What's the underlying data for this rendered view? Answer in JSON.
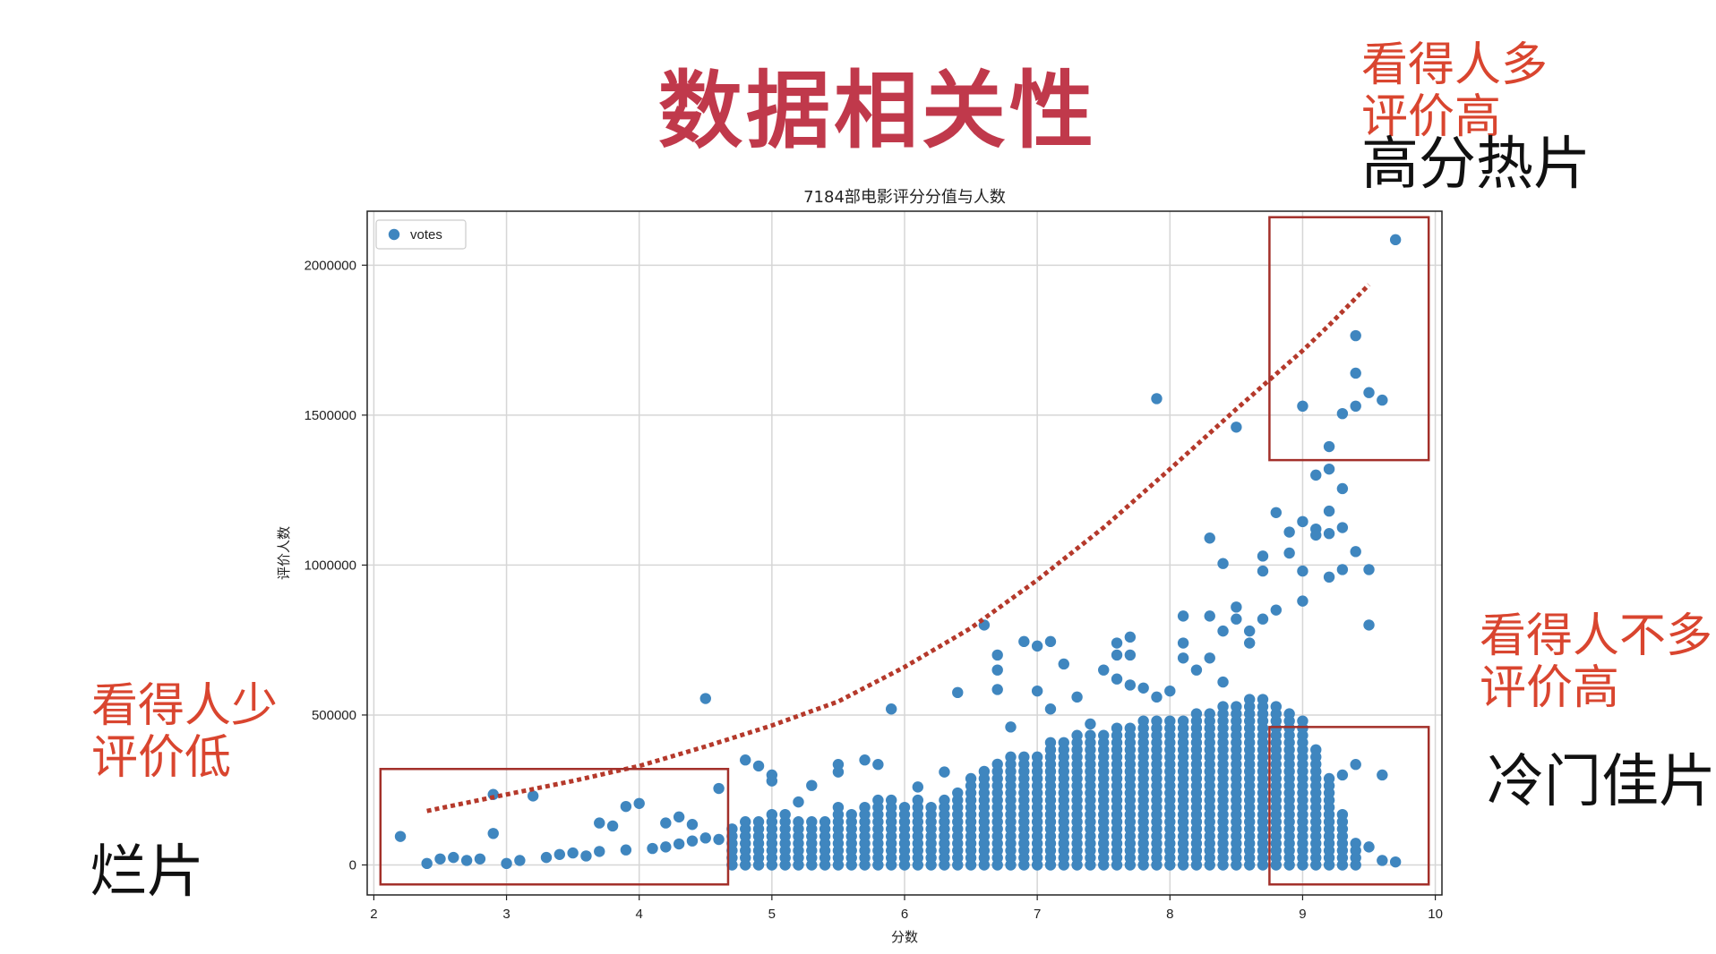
{
  "slide": {
    "title": "数据相关性",
    "annotations": {
      "top_right_line1": "看得人多",
      "top_right_line2": "评价高",
      "top_right_tag": "高分热片",
      "right_line1": "看得人不多",
      "right_line2": "评价高",
      "right_tag": "冷门佳片",
      "left_line1": "看得人少",
      "left_line2": "评价低",
      "left_tag": "烂片"
    }
  },
  "colors": {
    "title": "#c0394b",
    "annotation": "#d9452f",
    "points": "#3f86bf",
    "trend": "#b5392b",
    "box": "#a3302a"
  },
  "chart_data": {
    "type": "scatter",
    "title": "7184部电影评分分值与人数",
    "xlabel": "分数",
    "ylabel": "评价人数",
    "xlim": [
      1.95,
      10.05
    ],
    "ylim": [
      -100000,
      2180000
    ],
    "xticks": [
      2,
      3,
      4,
      5,
      6,
      7,
      8,
      9,
      10
    ],
    "yticks": [
      0,
      500000,
      1000000,
      1500000,
      2000000
    ],
    "ytick_labels": [
      "0",
      "500000",
      "1000000",
      "1500000",
      "2000000"
    ],
    "grid": true,
    "legend_position": "top-left",
    "series": [
      {
        "name": "votes",
        "points": [
          [
            2.2,
            95000
          ],
          [
            2.9,
            235000
          ],
          [
            3.2,
            230000
          ],
          [
            2.9,
            105000
          ],
          [
            3.7,
            140000
          ],
          [
            3.8,
            130000
          ],
          [
            3.9,
            195000
          ],
          [
            4.0,
            205000
          ],
          [
            4.2,
            140000
          ],
          [
            4.3,
            160000
          ],
          [
            4.4,
            135000
          ],
          [
            4.5,
            555000
          ],
          [
            4.6,
            255000
          ],
          [
            4.8,
            350000
          ],
          [
            4.9,
            330000
          ],
          [
            5.0,
            300000
          ],
          [
            5.0,
            280000
          ],
          [
            5.2,
            210000
          ],
          [
            5.3,
            265000
          ],
          [
            5.5,
            335000
          ],
          [
            5.5,
            310000
          ],
          [
            5.7,
            350000
          ],
          [
            5.8,
            335000
          ],
          [
            5.9,
            520000
          ],
          [
            6.1,
            260000
          ],
          [
            6.3,
            310000
          ],
          [
            6.4,
            575000
          ],
          [
            6.6,
            800000
          ],
          [
            6.7,
            700000
          ],
          [
            6.7,
            650000
          ],
          [
            6.7,
            585000
          ],
          [
            6.8,
            460000
          ],
          [
            6.9,
            745000
          ],
          [
            7.0,
            730000
          ],
          [
            7.0,
            580000
          ],
          [
            7.1,
            745000
          ],
          [
            7.1,
            520000
          ],
          [
            7.2,
            670000
          ],
          [
            7.3,
            560000
          ],
          [
            7.4,
            470000
          ],
          [
            7.5,
            650000
          ],
          [
            7.6,
            740000
          ],
          [
            7.6,
            700000
          ],
          [
            7.6,
            620000
          ],
          [
            7.7,
            760000
          ],
          [
            7.7,
            700000
          ],
          [
            7.7,
            600000
          ],
          [
            7.8,
            590000
          ],
          [
            7.9,
            1555000
          ],
          [
            7.9,
            560000
          ],
          [
            8.0,
            580000
          ],
          [
            8.1,
            830000
          ],
          [
            8.1,
            740000
          ],
          [
            8.1,
            690000
          ],
          [
            8.2,
            650000
          ],
          [
            8.3,
            1090000
          ],
          [
            8.3,
            830000
          ],
          [
            8.3,
            690000
          ],
          [
            8.4,
            1005000
          ],
          [
            8.4,
            780000
          ],
          [
            8.4,
            610000
          ],
          [
            8.5,
            1460000
          ],
          [
            8.5,
            860000
          ],
          [
            8.5,
            820000
          ],
          [
            8.6,
            780000
          ],
          [
            8.6,
            740000
          ],
          [
            8.7,
            1030000
          ],
          [
            8.7,
            980000
          ],
          [
            8.7,
            820000
          ],
          [
            8.8,
            1175000
          ],
          [
            8.8,
            850000
          ],
          [
            8.9,
            1110000
          ],
          [
            8.9,
            1040000
          ],
          [
            9.0,
            1530000
          ],
          [
            9.0,
            1145000
          ],
          [
            9.0,
            980000
          ],
          [
            9.0,
            880000
          ],
          [
            9.1,
            1300000
          ],
          [
            9.1,
            1120000
          ],
          [
            9.1,
            1100000
          ],
          [
            9.2,
            1395000
          ],
          [
            9.2,
            1320000
          ],
          [
            9.2,
            1180000
          ],
          [
            9.2,
            1105000
          ],
          [
            9.2,
            960000
          ],
          [
            9.3,
            1505000
          ],
          [
            9.3,
            1255000
          ],
          [
            9.3,
            1125000
          ],
          [
            9.3,
            985000
          ],
          [
            9.4,
            1765000
          ],
          [
            9.4,
            1640000
          ],
          [
            9.4,
            1530000
          ],
          [
            9.4,
            1045000
          ],
          [
            9.5,
            1575000
          ],
          [
            9.5,
            985000
          ],
          [
            9.5,
            800000
          ],
          [
            9.6,
            1550000
          ],
          [
            9.6,
            300000
          ],
          [
            9.7,
            2085000
          ],
          [
            9.4,
            335000
          ],
          [
            9.3,
            300000
          ],
          [
            9.5,
            60000
          ],
          [
            9.6,
            15000
          ],
          [
            9.7,
            10000
          ],
          [
            2.4,
            5000
          ],
          [
            2.5,
            20000
          ],
          [
            2.6,
            25000
          ],
          [
            2.7,
            15000
          ],
          [
            2.8,
            20000
          ],
          [
            3.0,
            5000
          ],
          [
            3.1,
            15000
          ],
          [
            3.3,
            25000
          ],
          [
            3.4,
            35000
          ],
          [
            3.5,
            40000
          ],
          [
            3.6,
            30000
          ],
          [
            3.7,
            45000
          ],
          [
            3.9,
            50000
          ],
          [
            4.1,
            55000
          ],
          [
            4.2,
            60000
          ],
          [
            4.3,
            70000
          ],
          [
            4.4,
            80000
          ],
          [
            4.5,
            90000
          ],
          [
            4.6,
            85000
          ]
        ],
        "density": [
          [
            4.7,
            120000
          ],
          [
            4.8,
            160000
          ],
          [
            4.9,
            150000
          ],
          [
            5.0,
            175000
          ],
          [
            5.1,
            170000
          ],
          [
            5.2,
            165000
          ],
          [
            5.3,
            150000
          ],
          [
            5.4,
            165000
          ],
          [
            5.5,
            200000
          ],
          [
            5.6,
            190000
          ],
          [
            5.7,
            215000
          ],
          [
            5.8,
            225000
          ],
          [
            5.9,
            220000
          ],
          [
            6.0,
            210000
          ],
          [
            6.1,
            225000
          ],
          [
            6.2,
            215000
          ],
          [
            6.3,
            225000
          ],
          [
            6.4,
            240000
          ],
          [
            6.5,
            300000
          ],
          [
            6.6,
            325000
          ],
          [
            6.7,
            345000
          ],
          [
            6.8,
            360000
          ],
          [
            6.9,
            370000
          ],
          [
            7.0,
            380000
          ],
          [
            7.1,
            410000
          ],
          [
            7.2,
            420000
          ],
          [
            7.3,
            440000
          ],
          [
            7.4,
            450000
          ],
          [
            7.5,
            455000
          ],
          [
            7.6,
            460000
          ],
          [
            7.7,
            470000
          ],
          [
            7.8,
            480000
          ],
          [
            7.9,
            490000
          ],
          [
            8.0,
            500000
          ],
          [
            8.1,
            500000
          ],
          [
            8.2,
            510000
          ],
          [
            8.3,
            520000
          ],
          [
            8.4,
            530000
          ],
          [
            8.5,
            545000
          ],
          [
            8.6,
            560000
          ],
          [
            8.7,
            560000
          ],
          [
            8.8,
            545000
          ],
          [
            8.9,
            520000
          ],
          [
            9.0,
            480000
          ],
          [
            9.1,
            400000
          ],
          [
            9.2,
            300000
          ],
          [
            9.3,
            170000
          ],
          [
            9.4,
            90000
          ]
        ]
      }
    ],
    "trend_curve": {
      "style": "dotted",
      "points": [
        [
          2.4,
          180000
        ],
        [
          3.0,
          235000
        ],
        [
          3.5,
          280000
        ],
        [
          4.0,
          330000
        ],
        [
          4.5,
          395000
        ],
        [
          5.0,
          465000
        ],
        [
          5.5,
          545000
        ],
        [
          6.0,
          660000
        ],
        [
          6.5,
          790000
        ],
        [
          7.0,
          950000
        ],
        [
          7.5,
          1125000
        ],
        [
          8.0,
          1320000
        ],
        [
          8.5,
          1520000
        ],
        [
          9.0,
          1715000
        ],
        [
          9.2,
          1800000
        ],
        [
          9.5,
          1935000
        ]
      ]
    },
    "highlight_boxes": [
      {
        "label": "高分热片",
        "x": [
          8.75,
          9.95
        ],
        "y": [
          1350000,
          2160000
        ]
      },
      {
        "label": "冷门佳片",
        "x": [
          8.75,
          9.95
        ],
        "y": [
          -65000,
          460000
        ]
      },
      {
        "label": "烂片",
        "x": [
          2.05,
          4.67
        ],
        "y": [
          -65000,
          320000
        ]
      }
    ]
  }
}
